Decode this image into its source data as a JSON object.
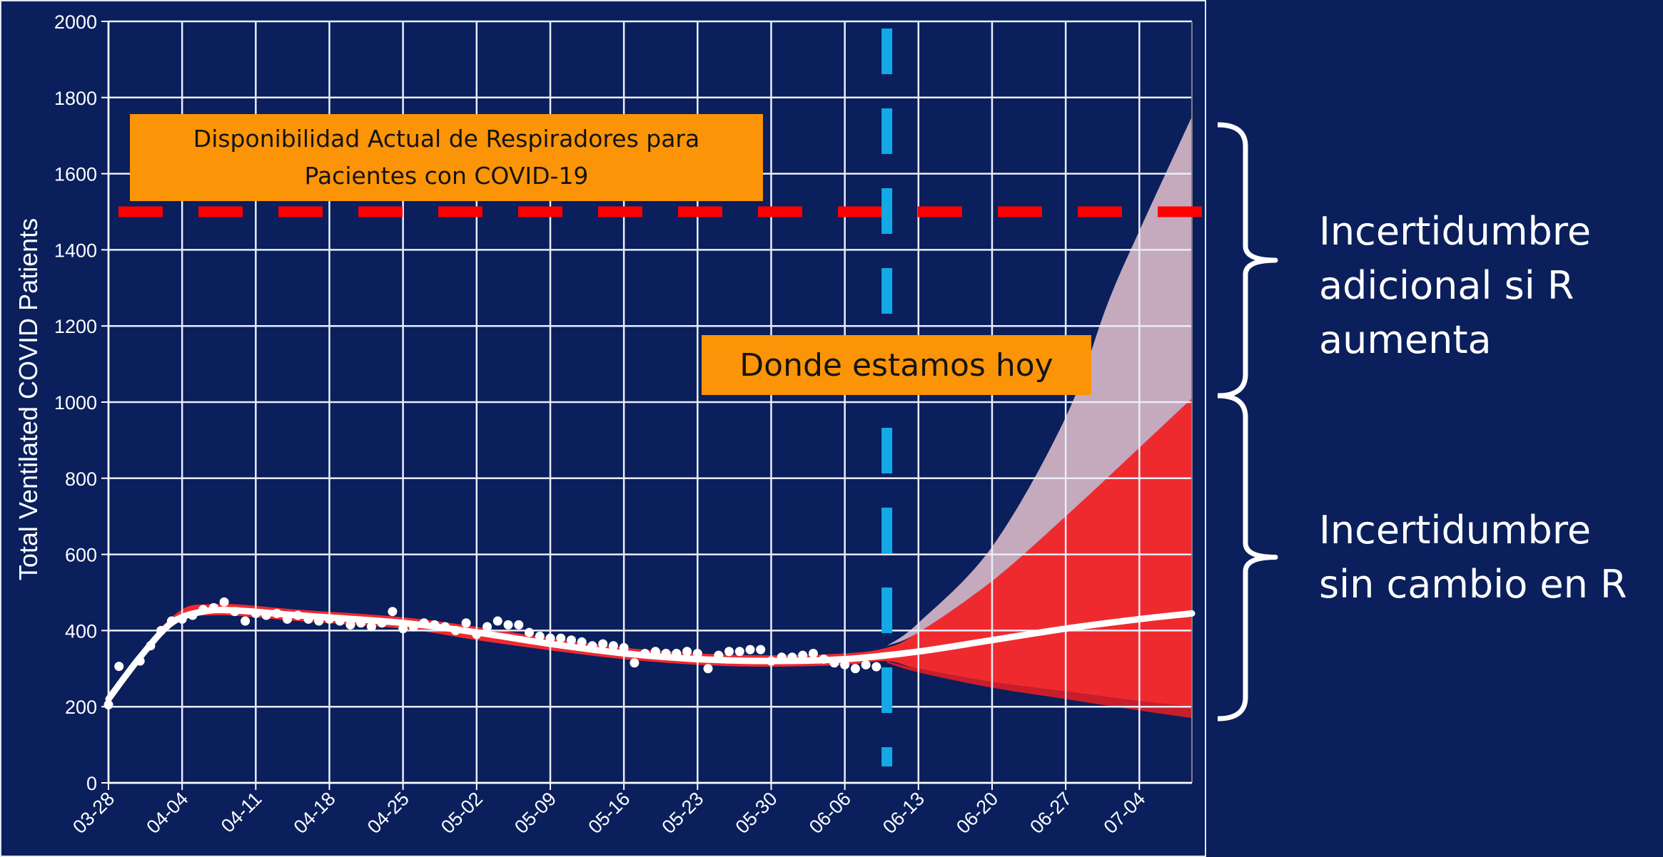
{
  "chart_data": {
    "type": "line",
    "ylabel": "Total Ventilated COVID Patients",
    "xlabel": "",
    "ylim": [
      0,
      2000
    ],
    "yticks": [
      0,
      200,
      400,
      600,
      800,
      1000,
      1200,
      1400,
      1600,
      1800,
      2000
    ],
    "x_tick_labels": [
      "03-28",
      "04-04",
      "04-11",
      "04-18",
      "04-25",
      "05-02",
      "05-09",
      "05-16",
      "05-23",
      "05-30",
      "06-06",
      "06-13",
      "06-20",
      "06-27",
      "07-04"
    ],
    "x_start": "03-28",
    "x_end": "07-09",
    "grid": true,
    "capacity_line": {
      "value": 1500,
      "color": "#ff0000"
    },
    "today": {
      "date": "06-10",
      "color": "#12a9e6"
    },
    "series": [
      {
        "kind": "observed",
        "color": "#ffffff",
        "points": [
          [
            "03-28",
            205
          ],
          [
            "03-29",
            306
          ],
          [
            "03-31",
            320
          ],
          [
            "04-01",
            360
          ],
          [
            "04-02",
            400
          ],
          [
            "04-03",
            425
          ],
          [
            "04-04",
            430
          ],
          [
            "04-05",
            440
          ],
          [
            "04-06",
            455
          ],
          [
            "04-07",
            460
          ],
          [
            "04-08",
            475
          ],
          [
            "04-09",
            450
          ],
          [
            "04-10",
            425
          ],
          [
            "04-11",
            445
          ],
          [
            "04-12",
            440
          ],
          [
            "04-13",
            445
          ],
          [
            "04-14",
            430
          ],
          [
            "04-15",
            440
          ],
          [
            "04-16",
            430
          ],
          [
            "04-17",
            425
          ],
          [
            "04-18",
            430
          ],
          [
            "04-19",
            425
          ],
          [
            "04-20",
            415
          ],
          [
            "04-21",
            420
          ],
          [
            "04-22",
            410
          ],
          [
            "04-23",
            420
          ],
          [
            "04-24",
            450
          ],
          [
            "04-25",
            405
          ],
          [
            "04-26",
            410
          ],
          [
            "04-27",
            420
          ],
          [
            "04-28",
            415
          ],
          [
            "04-29",
            410
          ],
          [
            "04-30",
            400
          ],
          [
            "05-01",
            420
          ],
          [
            "05-02",
            390
          ],
          [
            "05-03",
            410
          ],
          [
            "05-04",
            425
          ],
          [
            "05-05",
            415
          ],
          [
            "05-06",
            415
          ],
          [
            "05-07",
            395
          ],
          [
            "05-08",
            385
          ],
          [
            "05-09",
            380
          ],
          [
            "05-10",
            380
          ],
          [
            "05-11",
            375
          ],
          [
            "05-12",
            370
          ],
          [
            "05-13",
            360
          ],
          [
            "05-14",
            365
          ],
          [
            "05-15",
            360
          ],
          [
            "05-16",
            355
          ],
          [
            "05-17",
            315
          ],
          [
            "05-18",
            340
          ],
          [
            "05-19",
            345
          ],
          [
            "05-20",
            340
          ],
          [
            "05-21",
            340
          ],
          [
            "05-22",
            345
          ],
          [
            "05-23",
            340
          ],
          [
            "05-24",
            300
          ],
          [
            "05-25",
            335
          ],
          [
            "05-26",
            345
          ],
          [
            "05-27",
            345
          ],
          [
            "05-28",
            350
          ],
          [
            "05-29",
            350
          ],
          [
            "05-30",
            320
          ],
          [
            "05-31",
            330
          ],
          [
            "06-01",
            330
          ],
          [
            "06-02",
            335
          ],
          [
            "06-03",
            340
          ],
          [
            "06-04",
            325
          ],
          [
            "06-05",
            315
          ],
          [
            "06-06",
            310
          ],
          [
            "06-07",
            300
          ],
          [
            "06-08",
            310
          ],
          [
            "06-09",
            305
          ]
        ]
      },
      {
        "kind": "model",
        "color": "#ffffff",
        "points": [
          [
            "03-28",
            220
          ],
          [
            "03-31",
            330
          ],
          [
            "04-03",
            420
          ],
          [
            "04-06",
            450
          ],
          [
            "04-09",
            453
          ],
          [
            "04-15",
            440
          ],
          [
            "04-25",
            420
          ],
          [
            "05-02",
            395
          ],
          [
            "05-09",
            365
          ],
          [
            "05-16",
            340
          ],
          [
            "05-23",
            325
          ],
          [
            "05-30",
            320
          ],
          [
            "06-06",
            325
          ],
          [
            "06-13",
            345
          ],
          [
            "06-20",
            375
          ],
          [
            "06-27",
            405
          ],
          [
            "07-04",
            430
          ],
          [
            "07-09",
            445
          ]
        ]
      },
      {
        "kind": "band-no-change",
        "color": "#ef2a2f",
        "upper": [
          [
            "03-28",
            235
          ],
          [
            "04-03",
            435
          ],
          [
            "04-07",
            470
          ],
          [
            "04-15",
            455
          ],
          [
            "04-25",
            435
          ],
          [
            "05-02",
            410
          ],
          [
            "05-09",
            380
          ],
          [
            "05-16",
            355
          ],
          [
            "05-23",
            340
          ],
          [
            "05-30",
            335
          ],
          [
            "06-06",
            340
          ],
          [
            "06-10",
            355
          ],
          [
            "06-13",
            395
          ],
          [
            "06-20",
            530
          ],
          [
            "06-27",
            700
          ],
          [
            "07-04",
            880
          ],
          [
            "07-09",
            1010
          ]
        ],
        "lower": [
          [
            "07-09",
            200
          ],
          [
            "07-04",
            215
          ],
          [
            "06-27",
            240
          ],
          [
            "06-20",
            265
          ],
          [
            "06-13",
            300
          ],
          [
            "06-10",
            320
          ],
          [
            "06-06",
            310
          ],
          [
            "05-30",
            305
          ],
          [
            "05-23",
            310
          ],
          [
            "05-16",
            325
          ],
          [
            "05-09",
            348
          ],
          [
            "05-02",
            375
          ],
          [
            "04-25",
            405
          ],
          [
            "04-15",
            425
          ],
          [
            "04-07",
            440
          ],
          [
            "04-03",
            410
          ],
          [
            "03-28",
            210
          ]
        ]
      },
      {
        "kind": "band-r-increase",
        "color": "#c5a9bd",
        "upper": [
          [
            "06-10",
            360
          ],
          [
            "06-13",
            420
          ],
          [
            "06-20",
            620
          ],
          [
            "06-27",
            960
          ],
          [
            "07-01",
            1260
          ],
          [
            "07-04",
            1450
          ],
          [
            "07-09",
            1750
          ]
        ],
        "lower": [
          [
            "07-09",
            1010
          ],
          [
            "07-04",
            880
          ],
          [
            "06-27",
            700
          ],
          [
            "06-20",
            530
          ],
          [
            "06-13",
            395
          ],
          [
            "06-10",
            360
          ]
        ]
      },
      {
        "kind": "band-lower-tail",
        "color": "#c81e2b",
        "upper": [
          [
            "06-10",
            320
          ],
          [
            "06-13",
            300
          ],
          [
            "06-20",
            265
          ],
          [
            "06-27",
            240
          ],
          [
            "07-04",
            215
          ],
          [
            "07-09",
            200
          ]
        ],
        "lower": [
          [
            "07-09",
            170
          ],
          [
            "07-04",
            190
          ],
          [
            "06-27",
            220
          ],
          [
            "06-20",
            250
          ],
          [
            "06-13",
            290
          ],
          [
            "06-10",
            315
          ]
        ]
      }
    ]
  },
  "annotations": {
    "capacity_label": "Disponibilidad Actual de Respiradores para Pacientes con COVID-19",
    "today_label": "Donde estamos hoy"
  },
  "side_labels": {
    "top": "Incertidumbre adicional si R aumenta",
    "bottom": "Incertidumbre sin cambio en R"
  }
}
